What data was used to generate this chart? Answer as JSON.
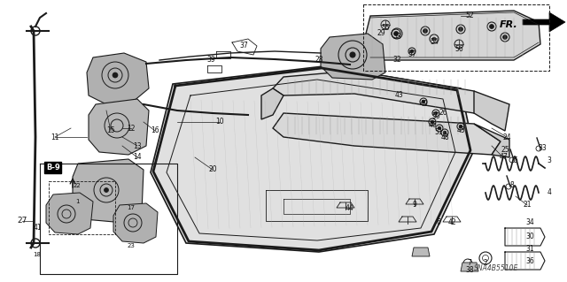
{
  "bg_color": "#ffffff",
  "diagram_code": "SNA4B5510E",
  "fr_label": "FR.",
  "line_color": "#1a1a1a",
  "line_color2": "#333333",
  "gray_fill": "#d0d0d0",
  "light_gray": "#e8e8e8",
  "dark_gray": "#555555"
}
